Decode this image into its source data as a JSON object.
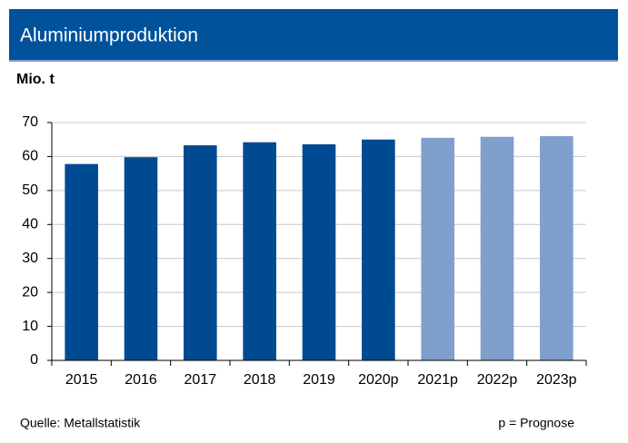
{
  "chart_data": {
    "type": "bar",
    "title": "Aluminiumproduktion",
    "y_label": "Mio. t",
    "categories": [
      "2015",
      "2016",
      "2017",
      "2018",
      "2019",
      "2020p",
      "2021p",
      "2022p",
      "2023p"
    ],
    "values": [
      57.8,
      59.8,
      63.3,
      64.2,
      63.6,
      65.0,
      65.5,
      65.8,
      66.0
    ],
    "colors": [
      "#004a92",
      "#004a92",
      "#004a92",
      "#004a92",
      "#004a92",
      "#004a92",
      "#7f9fcd",
      "#7f9fcd",
      "#7f9fcd"
    ],
    "ylim": [
      0,
      70
    ],
    "yticks": [
      0,
      10,
      20,
      30,
      40,
      50,
      60,
      70
    ],
    "grid": true,
    "source": "Quelle: Metallstatistik",
    "note": "p = Prognose"
  }
}
